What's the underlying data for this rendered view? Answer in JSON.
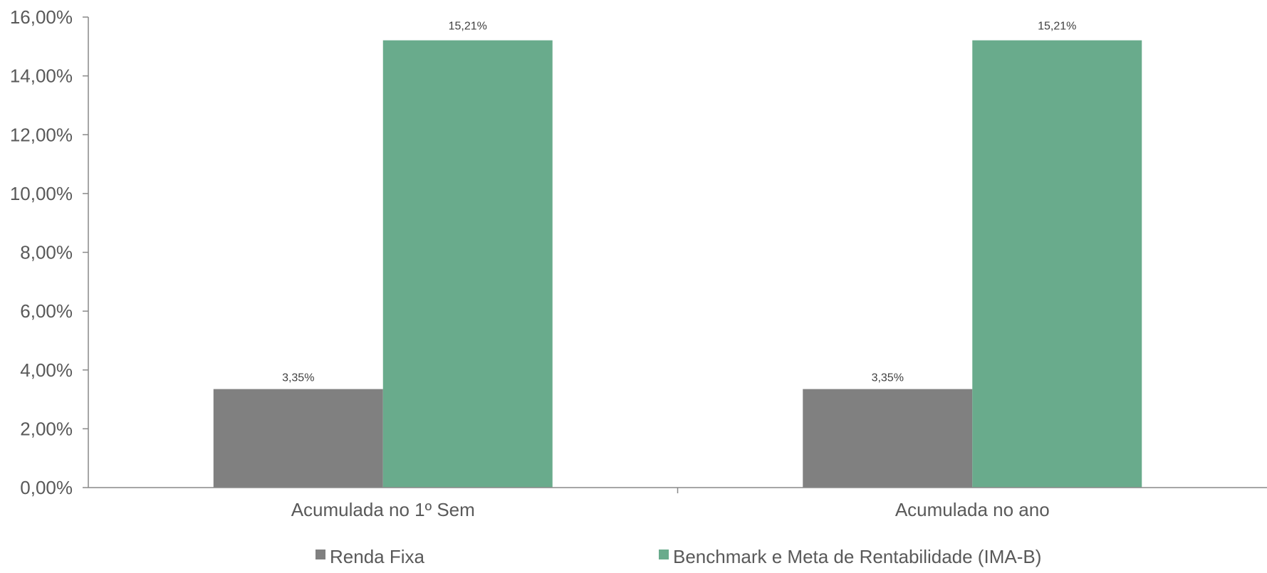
{
  "chart_data": {
    "type": "bar",
    "categories": [
      "Acumulada no 1º Sem",
      "Acumulada no ano"
    ],
    "series": [
      {
        "name": "Renda Fixa",
        "values": [
          3.35,
          3.35
        ],
        "labels": [
          "3,35%",
          "3,35%"
        ],
        "color": "#808080"
      },
      {
        "name": "Benchmark e Meta de Rentabilidade (IMA-B)",
        "values": [
          15.21,
          15.21
        ],
        "labels": [
          "15,21%",
          "15,21%"
        ],
        "color": "#69AB8C"
      }
    ],
    "ylim": [
      0,
      16
    ],
    "yticks": [
      0,
      2,
      4,
      6,
      8,
      10,
      12,
      14,
      16
    ],
    "ytick_labels": [
      "0,00%",
      "2,00%",
      "4,00%",
      "6,00%",
      "8,00%",
      "10,00%",
      "12,00%",
      "14,00%",
      "16,00%"
    ],
    "grid": false,
    "legend_position": "bottom",
    "axis_color": "#898989",
    "text_color": "#595959"
  }
}
